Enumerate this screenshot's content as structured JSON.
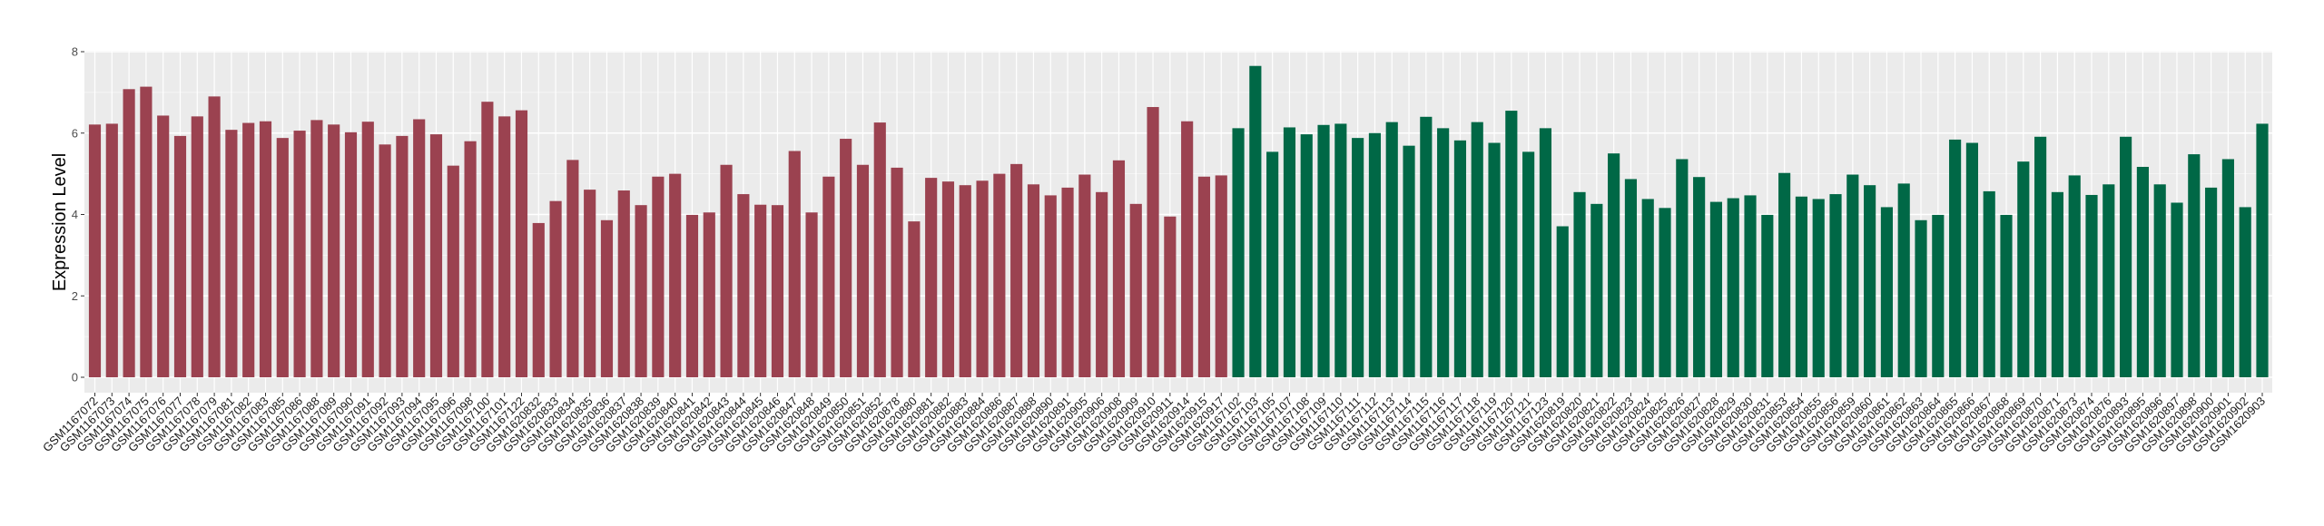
{
  "chart_data": {
    "type": "bar",
    "title": "",
    "xlabel": "",
    "ylabel": "Expression Level",
    "ylim": [
      0,
      8
    ],
    "yticks": [
      "0",
      "2",
      "4",
      "6",
      "8"
    ],
    "grid": true,
    "legend": "none",
    "colors": {
      "group1": "#9B4250",
      "group2": "#006846",
      "panel": "#EBEBEB"
    },
    "categories": [
      "GSM1167072",
      "GSM1167073",
      "GSM1167074",
      "GSM1167075",
      "GSM1167076",
      "GSM1167077",
      "GSM1167078",
      "GSM1167079",
      "GSM1167081",
      "GSM1167082",
      "GSM1167083",
      "GSM1167085",
      "GSM1167086",
      "GSM1167088",
      "GSM1167089",
      "GSM1167090",
      "GSM1167091",
      "GSM1167092",
      "GSM1167093",
      "GSM1167094",
      "GSM1167095",
      "GSM1167096",
      "GSM1167098",
      "GSM1167100",
      "GSM1167101",
      "GSM1167122",
      "GSM1620832",
      "GSM1620833",
      "GSM1620834",
      "GSM1620835",
      "GSM1620836",
      "GSM1620837",
      "GSM1620838",
      "GSM1620839",
      "GSM1620840",
      "GSM1620841",
      "GSM1620842",
      "GSM1620843",
      "GSM1620844",
      "GSM1620845",
      "GSM1620846",
      "GSM1620847",
      "GSM1620848",
      "GSM1620849",
      "GSM1620850",
      "GSM1620851",
      "GSM1620852",
      "GSM1620878",
      "GSM1620880",
      "GSM1620881",
      "GSM1620882",
      "GSM1620883",
      "GSM1620884",
      "GSM1620886",
      "GSM1620887",
      "GSM1620888",
      "GSM1620890",
      "GSM1620891",
      "GSM1620905",
      "GSM1620906",
      "GSM1620908",
      "GSM1620909",
      "GSM1620910",
      "GSM1620911",
      "GSM1620914",
      "GSM1620915",
      "GSM1620917",
      "GSM1167102",
      "GSM1167103",
      "GSM1167105",
      "GSM1167107",
      "GSM1167108",
      "GSM1167109",
      "GSM1167110",
      "GSM1167111",
      "GSM1167112",
      "GSM1167113",
      "GSM1167114",
      "GSM1167115",
      "GSM1167116",
      "GSM1167117",
      "GSM1167118",
      "GSM1167119",
      "GSM1167120",
      "GSM1167121",
      "GSM1167123",
      "GSM1620819",
      "GSM1620820",
      "GSM1620821",
      "GSM1620822",
      "GSM1620823",
      "GSM1620824",
      "GSM1620825",
      "GSM1620826",
      "GSM1620827",
      "GSM1620828",
      "GSM1620829",
      "GSM1620830",
      "GSM1620831",
      "GSM1620853",
      "GSM1620854",
      "GSM1620855",
      "GSM1620856",
      "GSM1620859",
      "GSM1620860",
      "GSM1620861",
      "GSM1620862",
      "GSM1620863",
      "GSM1620864",
      "GSM1620865",
      "GSM1620866",
      "GSM1620867",
      "GSM1620868",
      "GSM1620869",
      "GSM1620870",
      "GSM1620871",
      "GSM1620873",
      "GSM1620874",
      "GSM1620876",
      "GSM1620893",
      "GSM1620895",
      "GSM1620896",
      "GSM1620897",
      "GSM1620898",
      "GSM1620900",
      "GSM1620901",
      "GSM1620902",
      "GSM1620903"
    ],
    "values": [
      6.21,
      6.23,
      7.08,
      7.14,
      6.43,
      5.93,
      6.41,
      6.9,
      6.08,
      6.25,
      6.29,
      5.88,
      6.06,
      6.32,
      6.21,
      6.02,
      6.28,
      5.72,
      5.93,
      6.34,
      5.97,
      5.2,
      5.8,
      6.77,
      6.41,
      6.56,
      3.79,
      4.33,
      5.34,
      4.61,
      3.86,
      4.59,
      4.23,
      4.93,
      5.0,
      3.99,
      4.05,
      5.22,
      4.5,
      4.24,
      4.23,
      5.56,
      4.05,
      4.93,
      5.86,
      5.22,
      6.26,
      5.15,
      3.83,
      4.9,
      4.81,
      4.72,
      4.83,
      5.0,
      5.24,
      4.74,
      4.47,
      4.66,
      4.98,
      4.55,
      5.33,
      4.26,
      6.64,
      3.95,
      6.29,
      4.93,
      4.96,
      6.12,
      7.65,
      5.54,
      6.14,
      5.97,
      6.2,
      6.23,
      5.88,
      6.0,
      6.27,
      5.69,
      6.4,
      6.12,
      5.82,
      6.27,
      5.76,
      6.55,
      5.54,
      6.12,
      3.71,
      4.55,
      4.26,
      5.5,
      4.87,
      4.38,
      4.16,
      5.36,
      4.92,
      4.31,
      4.4,
      4.47,
      3.99,
      5.02,
      4.44,
      4.38,
      4.5,
      4.98,
      4.72,
      4.18,
      4.76,
      3.86,
      3.99,
      5.84,
      5.76,
      4.57,
      3.99,
      5.3,
      5.91,
      4.55,
      4.96,
      4.48,
      4.74,
      5.91,
      5.17,
      4.74,
      4.29,
      5.48,
      4.66,
      5.36,
      4.18,
      6.23
    ],
    "groups_count": [
      67,
      61
    ]
  }
}
